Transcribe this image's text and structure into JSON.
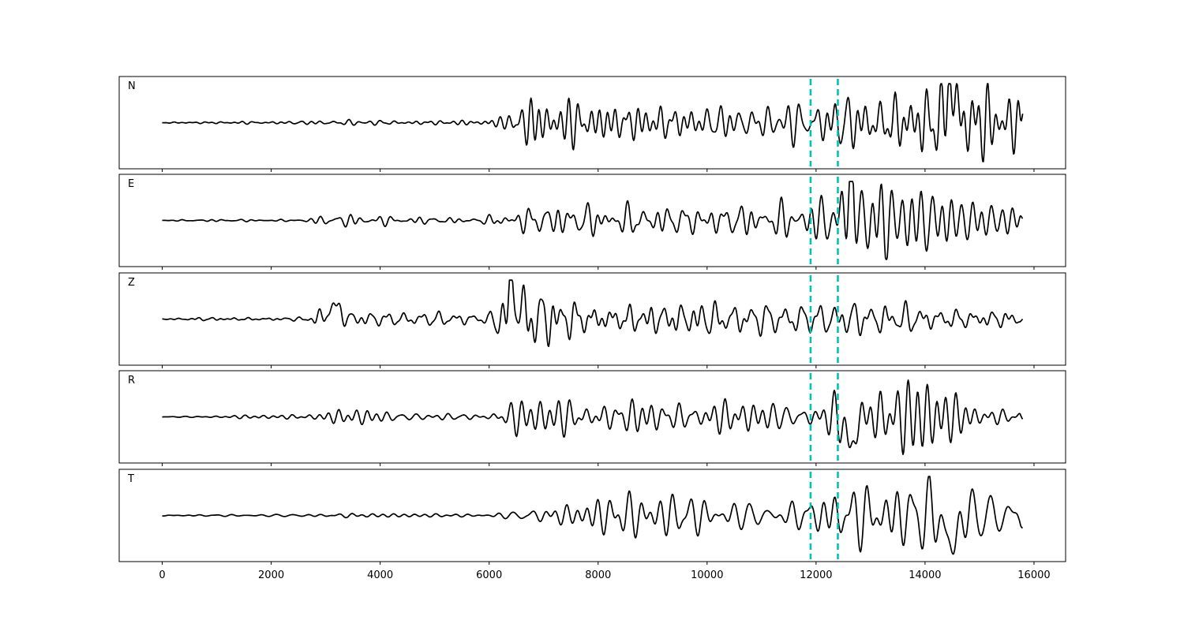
{
  "chart_data": {
    "type": "line",
    "title": "",
    "xlabel": "",
    "ylabel": "",
    "xlim": [
      -790,
      16580
    ],
    "xticks": [
      0,
      2000,
      4000,
      6000,
      8000,
      10000,
      12000,
      14000,
      16000
    ],
    "xtick_labels": [
      "0",
      "2000",
      "4000",
      "6000",
      "8000",
      "10000",
      "12000",
      "14000",
      "16000"
    ],
    "x_range": [
      0,
      15800
    ],
    "grid": false,
    "line_color": "#000000",
    "marker_color": "#00c2b8",
    "markers": [
      11900,
      12400
    ],
    "panels": [
      {
        "label": "N",
        "envelope": [
          [
            0,
            0.01
          ],
          [
            1000,
            0.02
          ],
          [
            2500,
            0.03
          ],
          [
            3500,
            0.08
          ],
          [
            4500,
            0.07
          ],
          [
            5800,
            0.06
          ],
          [
            6300,
            0.15
          ],
          [
            6800,
            0.55
          ],
          [
            8000,
            0.4
          ],
          [
            9500,
            0.4
          ],
          [
            11000,
            0.35
          ],
          [
            12400,
            0.55
          ],
          [
            13500,
            0.6
          ],
          [
            14500,
            0.9
          ],
          [
            15800,
            0.5
          ]
        ],
        "final": 0.28,
        "events": [
          {
            "x": 14480,
            "amp": 0.9,
            "w": 110
          }
        ],
        "seed": 11
      },
      {
        "label": "E",
        "envelope": [
          [
            0,
            0.01
          ],
          [
            1000,
            0.03
          ],
          [
            2500,
            0.02
          ],
          [
            3200,
            0.15
          ],
          [
            4500,
            0.1
          ],
          [
            5800,
            0.07
          ],
          [
            6300,
            0.25
          ],
          [
            7000,
            0.45
          ],
          [
            8000,
            0.45
          ],
          [
            9500,
            0.45
          ],
          [
            11000,
            0.45
          ],
          [
            12000,
            0.4
          ],
          [
            12600,
            0.8
          ],
          [
            13500,
            0.6
          ],
          [
            15000,
            0.3
          ],
          [
            15800,
            0.25
          ]
        ],
        "final": 0.05,
        "events": [
          {
            "x": 12620,
            "amp": 0.85,
            "w": 100
          }
        ],
        "seed": 23
      },
      {
        "label": "Z",
        "envelope": [
          [
            0,
            0.01
          ],
          [
            700,
            0.05
          ],
          [
            2500,
            0.04
          ],
          [
            3100,
            0.3
          ],
          [
            3400,
            0.15
          ],
          [
            5000,
            0.15
          ],
          [
            6000,
            0.1
          ],
          [
            6400,
            0.85
          ],
          [
            7200,
            0.6
          ],
          [
            8000,
            0.4
          ],
          [
            10000,
            0.35
          ],
          [
            12000,
            0.3
          ],
          [
            13500,
            0.3
          ],
          [
            15800,
            0.2
          ]
        ],
        "final": 0.0,
        "events": [
          {
            "x": 6450,
            "amp": 0.9,
            "w": 90
          },
          {
            "x": 3150,
            "amp": 0.3,
            "w": 160
          }
        ],
        "seed": 37
      },
      {
        "label": "R",
        "envelope": [
          [
            0,
            0.01
          ],
          [
            1000,
            0.02
          ],
          [
            2800,
            0.05
          ],
          [
            3300,
            0.15
          ],
          [
            5000,
            0.1
          ],
          [
            6000,
            0.08
          ],
          [
            6500,
            0.35
          ],
          [
            8000,
            0.4
          ],
          [
            10000,
            0.4
          ],
          [
            12000,
            0.4
          ],
          [
            12600,
            0.8
          ],
          [
            13800,
            0.7
          ],
          [
            15000,
            0.25
          ],
          [
            15800,
            0.2
          ]
        ],
        "final": -0.06,
        "events": [
          {
            "x": 12630,
            "amp": -0.85,
            "w": 100
          }
        ],
        "seed": 53
      },
      {
        "label": "T",
        "envelope": [
          [
            0,
            0.01
          ],
          [
            2500,
            0.03
          ],
          [
            3500,
            0.06
          ],
          [
            5000,
            0.05
          ],
          [
            6000,
            0.05
          ],
          [
            6600,
            0.4
          ],
          [
            8000,
            0.5
          ],
          [
            10000,
            0.4
          ],
          [
            11500,
            0.4
          ],
          [
            12400,
            0.55
          ],
          [
            13500,
            0.55
          ],
          [
            14500,
            0.75
          ],
          [
            15800,
            0.5
          ]
        ],
        "final": -0.3,
        "events": [
          {
            "x": 14480,
            "amp": -0.95,
            "w": 110
          }
        ],
        "seed": 71
      }
    ]
  }
}
